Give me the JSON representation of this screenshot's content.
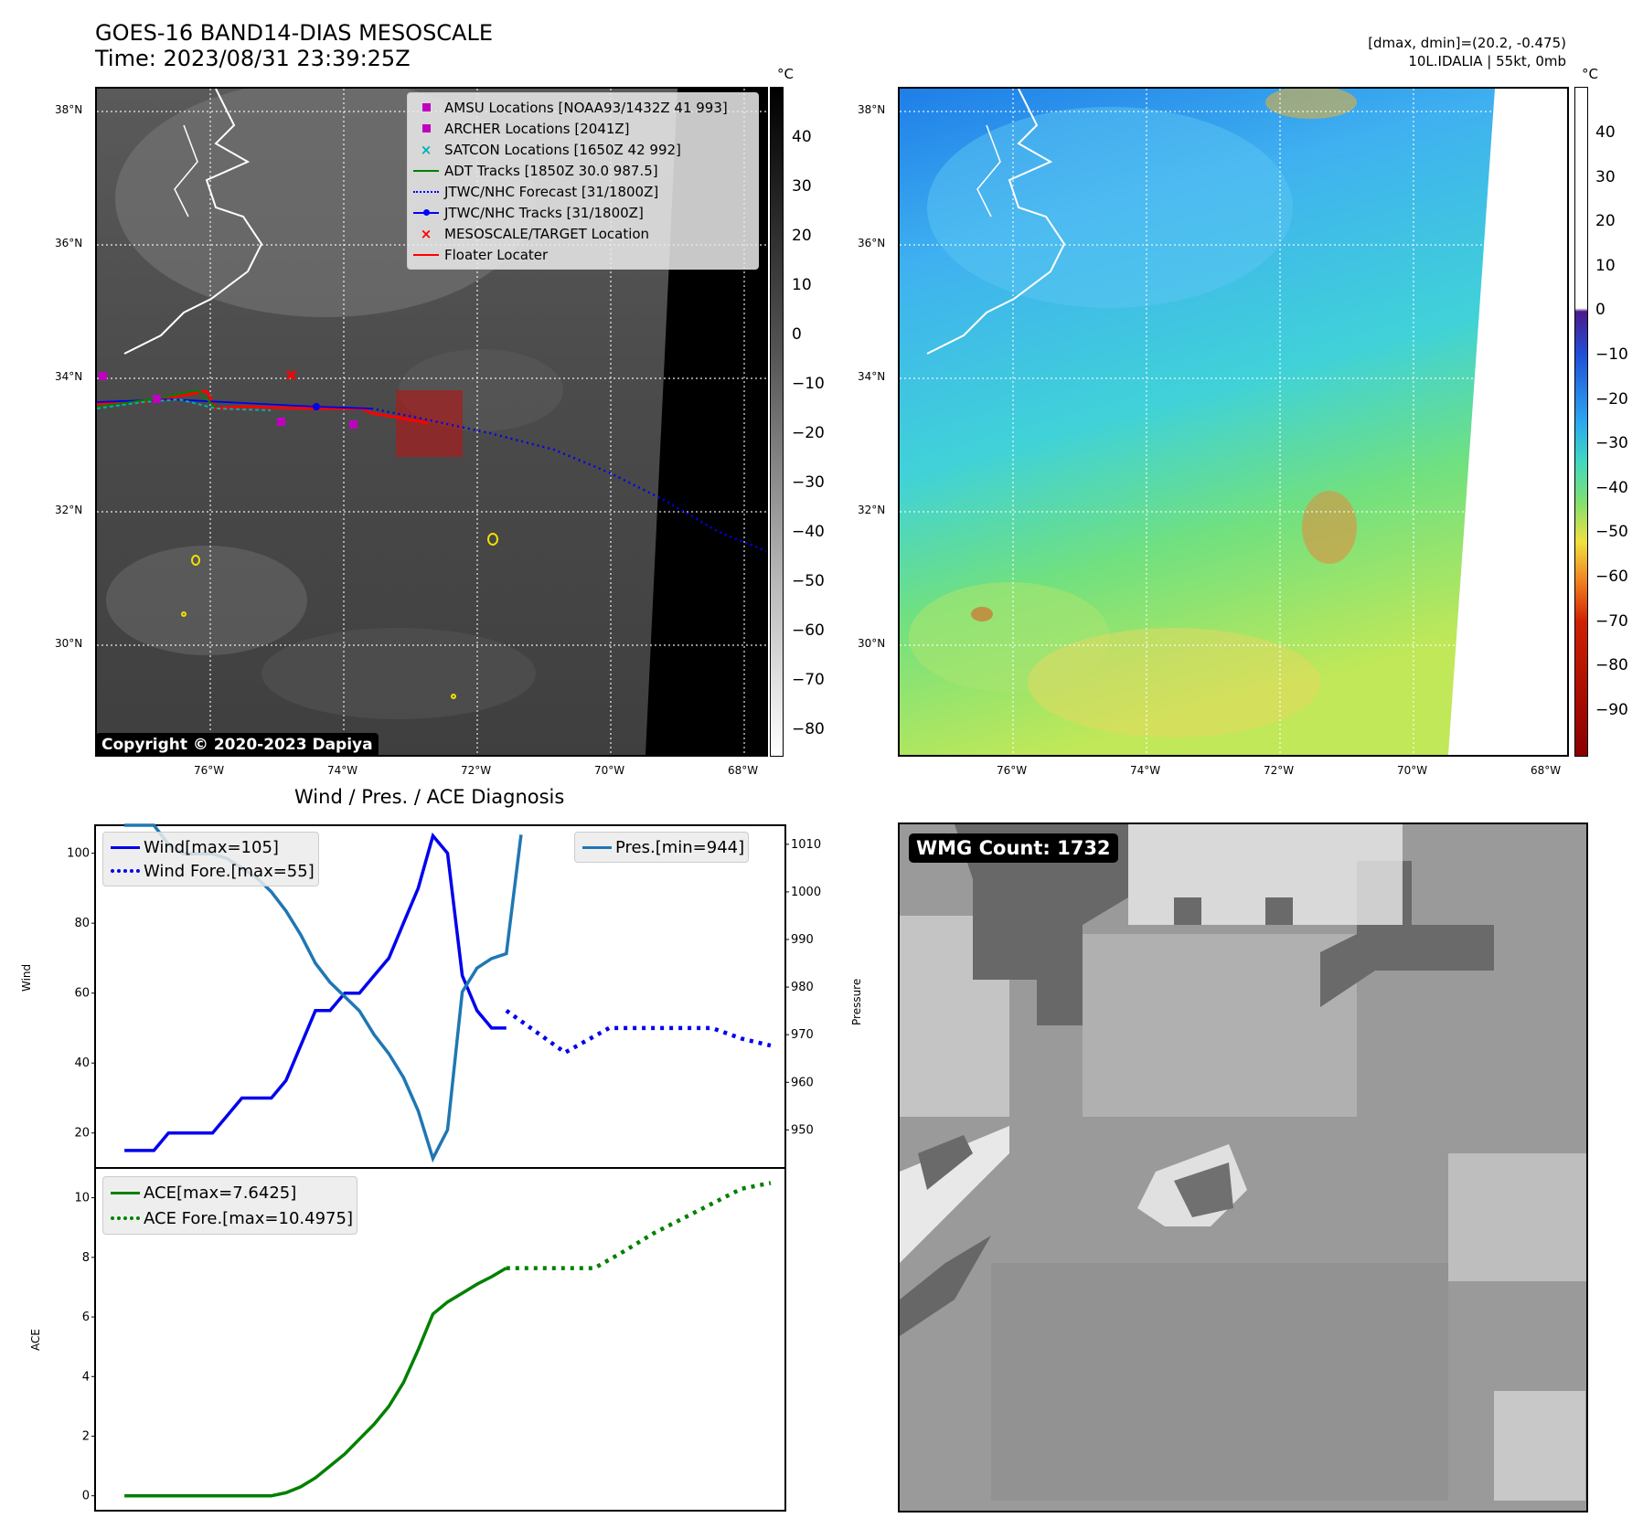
{
  "header": {
    "title_line1": "GOES-16 BAND14-DIAS MESOSCALE",
    "title_line2": "Time: 2023/08/31 23:39:25Z",
    "right_line1": "[dmax, dmin]=(20.2, -0.475)",
    "right_line2": "10L.IDALIA | 55kt, 0mb"
  },
  "map_left": {
    "lat_labels": [
      "38°N",
      "36°N",
      "34°N",
      "32°N",
      "30°N"
    ],
    "lon_labels": [
      "76°W",
      "74°W",
      "72°W",
      "70°W",
      "68°W"
    ],
    "copyright": "Copyright © 2020-2023 Dapiya",
    "legend": [
      {
        "label": "AMSU Locations [NOAA93/1432Z 41 993]",
        "symbol": "square",
        "color": "#c000c0"
      },
      {
        "label": "ARCHER Locations [2041Z]",
        "symbol": "square",
        "color": "#c000c0"
      },
      {
        "label": "SATCON Locations [1650Z 42 992]",
        "symbol": "x",
        "color": "#00b0b0"
      },
      {
        "label": "ADT Tracks [1850Z 30.0 987.5]",
        "symbol": "line",
        "color": "#008000"
      },
      {
        "label": "JTWC/NHC Forecast [31/1800Z]",
        "symbol": "dotted",
        "color": "#0000ff"
      },
      {
        "label": "JTWC/NHC Tracks [31/1800Z]",
        "symbol": "linedot",
        "color": "#0000ff"
      },
      {
        "label": "MESOSCALE/TARGET Location",
        "symbol": "x",
        "color": "#ff0000"
      },
      {
        "label": "Floater Locater",
        "symbol": "line",
        "color": "#ff0000"
      }
    ]
  },
  "colorbar_left": {
    "unit": "°C",
    "ticks": [
      "40",
      "30",
      "20",
      "10",
      "0",
      "−10",
      "−20",
      "−30",
      "−40",
      "−50",
      "−60",
      "−70",
      "−80"
    ]
  },
  "map_right": {
    "lat_labels": [
      "38°N",
      "36°N",
      "34°N",
      "32°N",
      "30°N"
    ],
    "lon_labels": [
      "76°W",
      "74°W",
      "72°W",
      "70°W",
      "68°W"
    ]
  },
  "colorbar_right": {
    "unit": "°C",
    "ticks": [
      "40",
      "30",
      "20",
      "10",
      "0",
      "−10",
      "−20",
      "−30",
      "−40",
      "−50",
      "−60",
      "−70",
      "−80",
      "−90"
    ]
  },
  "diagnosis": {
    "title": "Wind / Pres. / ACE Diagnosis",
    "wind_axis_label": "Wind",
    "pressure_axis_label": "Pressure",
    "ace_axis_label": "ACE",
    "wind_ticks": [
      "100",
      "80",
      "60",
      "40",
      "20"
    ],
    "pressure_ticks": [
      "1010",
      "1000",
      "990",
      "980",
      "970",
      "960",
      "950"
    ],
    "ace_ticks": [
      "10",
      "8",
      "6",
      "4",
      "2",
      "0"
    ],
    "legend_wind": "Wind[max=105]",
    "legend_wind_fore": "Wind Fore.[max=55]",
    "legend_pres": "Pres.[min=944]",
    "legend_ace": "ACE[max=7.6425]",
    "legend_ace_fore": "ACE Fore.[max=10.4975]"
  },
  "wmg": {
    "label": "WMG Count: 1732"
  },
  "chart_data": [
    {
      "type": "line",
      "title": "Wind / Pres. / ACE Diagnosis",
      "ylabel": "Wind",
      "ylim": [
        10,
        108
      ],
      "series": [
        {
          "name": "Wind[max=105]",
          "style": "solid",
          "color": "#0000ee",
          "x": [
            0,
            1,
            2,
            3,
            4,
            5,
            6,
            7,
            8,
            9,
            10,
            11,
            12,
            13,
            14,
            15,
            16,
            17,
            18,
            19,
            20,
            21,
            22,
            23,
            24,
            25,
            26
          ],
          "values": [
            15,
            15,
            15,
            20,
            20,
            20,
            20,
            25,
            30,
            30,
            30,
            35,
            45,
            55,
            55,
            60,
            60,
            65,
            70,
            80,
            90,
            105,
            100,
            65,
            55,
            50,
            50
          ]
        },
        {
          "name": "Wind Fore.[max=55]",
          "style": "dotted",
          "color": "#0000ee",
          "x": [
            26,
            27,
            30,
            33,
            36,
            38,
            40,
            42,
            44
          ],
          "values": [
            55,
            52,
            43,
            50,
            50,
            50,
            50,
            47,
            45
          ]
        }
      ]
    },
    {
      "type": "line",
      "ylabel": "Pressure",
      "ylim": [
        942,
        1014
      ],
      "series": [
        {
          "name": "Pres.[min=944]",
          "style": "solid",
          "color": "#1f77b4",
          "x": [
            0,
            1,
            2,
            3,
            4,
            5,
            6,
            7,
            8,
            9,
            10,
            11,
            12,
            13,
            14,
            15,
            16,
            17,
            18,
            19,
            20,
            21,
            22,
            23,
            24,
            25,
            26,
            27
          ],
          "values": [
            1014,
            1014,
            1014,
            1010,
            1008,
            1008,
            1008,
            1007,
            1005,
            1003,
            1000,
            996,
            991,
            985,
            981,
            978,
            975,
            970,
            966,
            961,
            954,
            944,
            950,
            979,
            984,
            986,
            987,
            1012
          ]
        }
      ]
    },
    {
      "type": "area",
      "ylabel": "ACE",
      "ylim": [
        -0.5,
        11
      ],
      "series": [
        {
          "name": "ACE[max=7.6425]",
          "style": "solid",
          "color": "#008000",
          "x": [
            0,
            2,
            4,
            6,
            8,
            10,
            11,
            12,
            13,
            14,
            15,
            16,
            17,
            18,
            19,
            20,
            21,
            22,
            23,
            24,
            25,
            26
          ],
          "values": [
            0,
            0,
            0,
            0,
            0,
            0,
            0.1,
            0.3,
            0.6,
            1.0,
            1.4,
            1.9,
            2.4,
            3.0,
            3.8,
            4.9,
            6.1,
            6.5,
            6.8,
            7.1,
            7.35,
            7.6425
          ]
        },
        {
          "name": "ACE Fore.[max=10.4975]",
          "style": "dotted",
          "color": "#008000",
          "x": [
            26,
            28,
            30,
            32,
            34,
            36,
            38,
            40,
            42,
            44
          ],
          "values": [
            7.64,
            7.64,
            7.64,
            7.64,
            8.2,
            8.8,
            9.3,
            9.8,
            10.3,
            10.4975
          ]
        }
      ]
    }
  ]
}
